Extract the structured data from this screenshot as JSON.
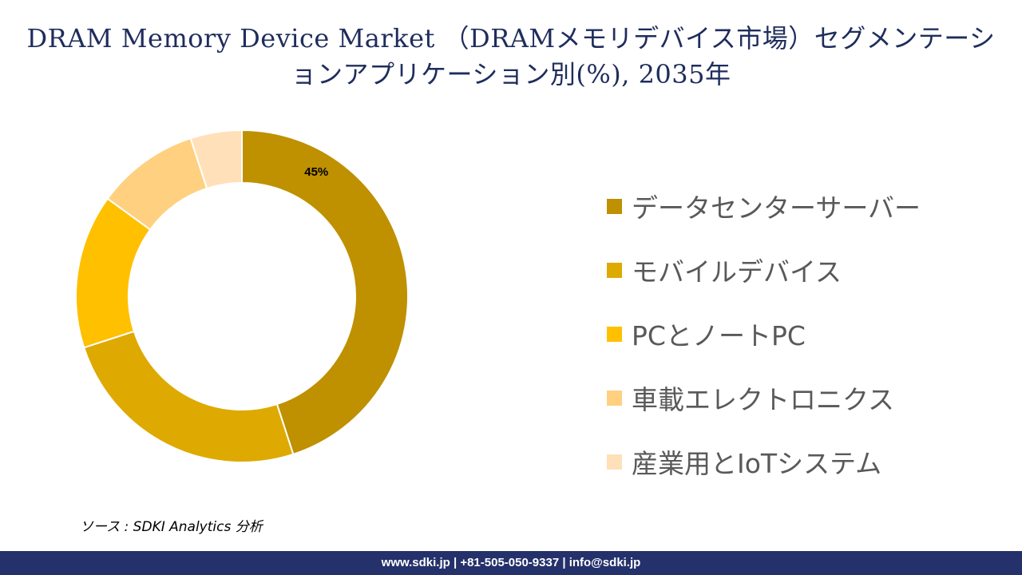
{
  "title": "DRAM Memory Device Market （DRAMメモリデバイス市場）セグメンテーションアプリケーション別(%), 2035年",
  "source": "ソース : SDKI Analytics 分析",
  "footer": "www.sdki.jp | +81-505-050-9337 | info@sdki.jp",
  "chart_data": {
    "type": "pie",
    "donut": true,
    "categories": [
      "データセンターサーバー",
      "モバイルデバイス",
      "PCとノートPC",
      "車載エレクトロニクス",
      "産業用とIoTシステム"
    ],
    "values": [
      45,
      25,
      15,
      10,
      5
    ],
    "colors": [
      "#bf9000",
      "#dea900",
      "#ffc000",
      "#ffd080",
      "#ffe0b8"
    ],
    "data_labels": [
      "45%",
      "",
      "",
      "",
      ""
    ],
    "legend_position": "right"
  }
}
